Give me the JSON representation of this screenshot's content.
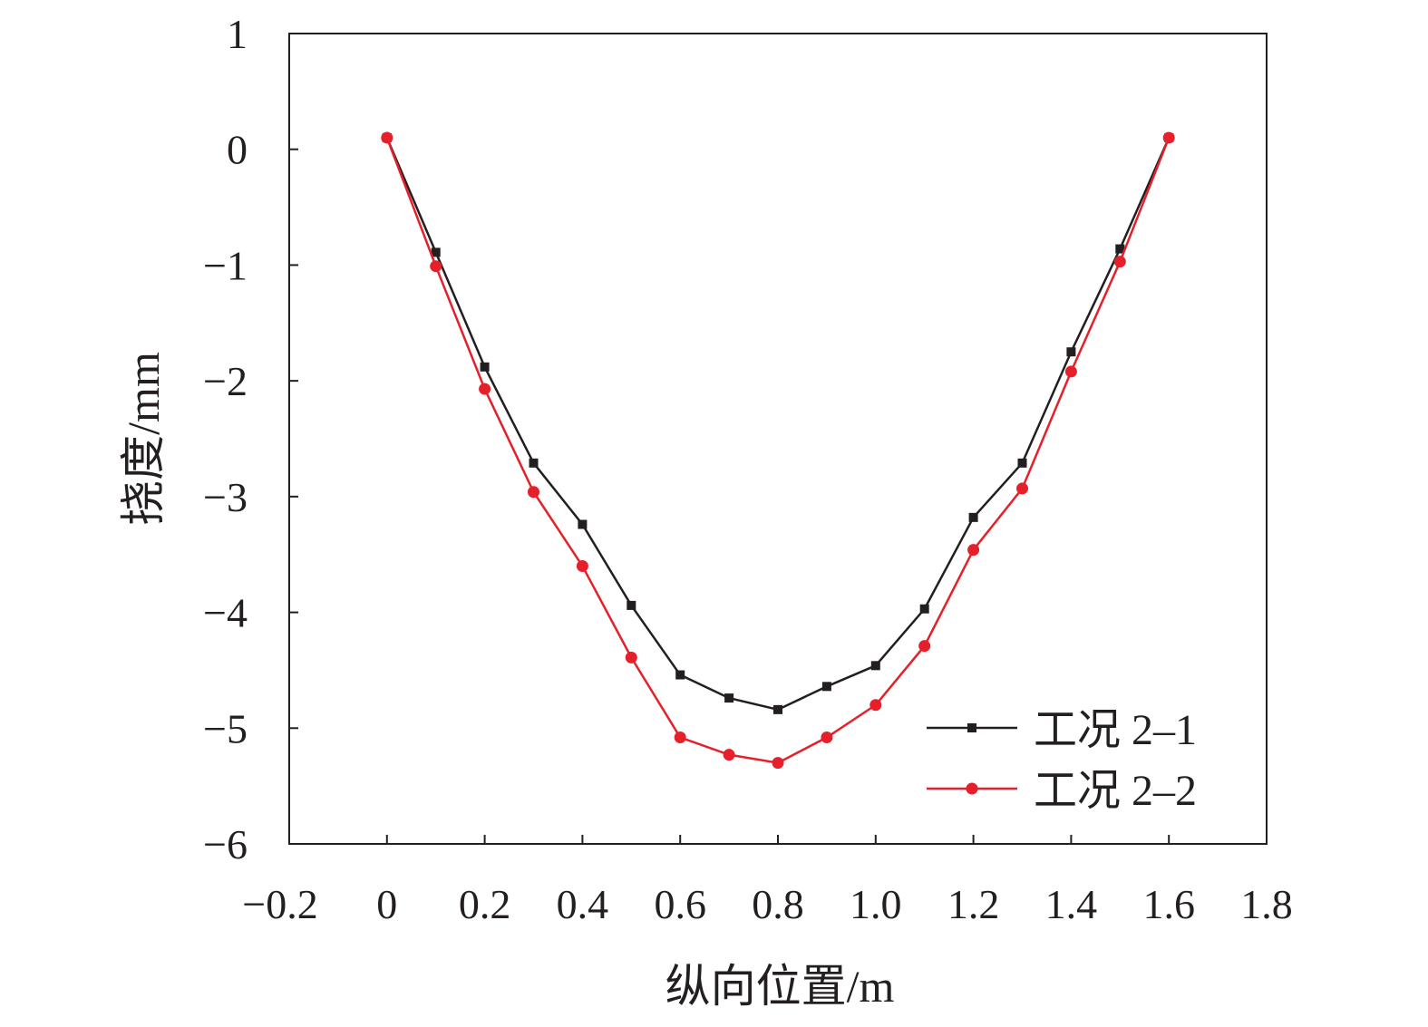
{
  "chart_data": {
    "type": "line",
    "title": "",
    "xlabel": "纵向位置/m",
    "ylabel": "挠度/mm",
    "xlim": [
      -0.2,
      1.8
    ],
    "ylim": [
      -6,
      1
    ],
    "xticks": [
      -0.2,
      0,
      0.2,
      0.4,
      0.6,
      0.8,
      1.0,
      1.2,
      1.4,
      1.6,
      1.8
    ],
    "xtick_labels": [
      "−0.2",
      "0",
      "0.2",
      "0.4",
      "0.6",
      "0.8",
      "1.0",
      "1.2",
      "1.4",
      "1.6",
      "1.8"
    ],
    "yticks": [
      1,
      0,
      -1,
      -2,
      -3,
      -4,
      -5,
      -6
    ],
    "ytick_labels": [
      "1",
      "0",
      "−1",
      "−2",
      "−3",
      "−4",
      "−5",
      "−6"
    ],
    "grid": false,
    "legend_position": "bottom-right",
    "x": [
      0,
      0.1,
      0.2,
      0.3,
      0.4,
      0.5,
      0.6,
      0.7,
      0.8,
      0.9,
      1.0,
      1.1,
      1.2,
      1.3,
      1.4,
      1.5,
      1.6
    ],
    "series": [
      {
        "name": "工况 2–1",
        "color": "#231f20",
        "marker": "square",
        "values": [
          0.1,
          -0.89,
          -1.88,
          -2.71,
          -3.24,
          -3.94,
          -4.54,
          -4.74,
          -4.84,
          -4.64,
          -4.46,
          -3.97,
          -3.18,
          -2.71,
          -1.75,
          -0.86,
          0.1
        ]
      },
      {
        "name": "工况 2–2",
        "color": "#e5202a",
        "marker": "circle",
        "values": [
          0.1,
          -1.01,
          -2.07,
          -2.96,
          -3.6,
          -4.39,
          -5.08,
          -5.23,
          -5.3,
          -5.08,
          -4.8,
          -4.29,
          -3.46,
          -2.93,
          -1.92,
          -0.97,
          0.1
        ]
      }
    ]
  }
}
